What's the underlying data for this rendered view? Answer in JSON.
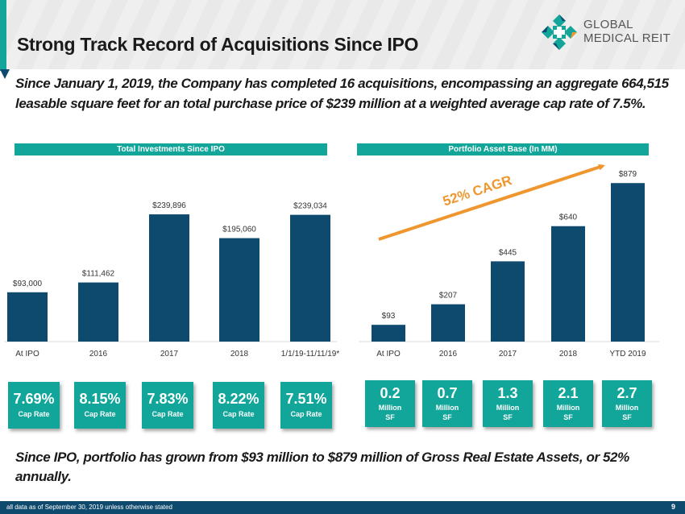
{
  "header": {
    "title": "Strong Track Record of Acquisitions Since IPO",
    "logo": {
      "icon": "global-medical-reit-logo-icon",
      "line1": "GLOBAL",
      "line2": "MEDICAL REIT"
    }
  },
  "intro_text": "Since January 1, 2019, the Company has completed 16 acquisitions, encompassing an aggregate 664,515 leasable square feet for an total purchase price of $239 million at a weighted average cap rate of 7.5%.",
  "colors": {
    "accent_teal": "#12a59a",
    "bar_navy": "#0e4a6e",
    "arrow_orange": "#f0962e"
  },
  "chart_data": [
    {
      "type": "bar",
      "title": "Total Investments Since IPO",
      "categories": [
        "At IPO",
        "2016",
        "2017",
        "2018",
        "1/1/19-11/11/19*"
      ],
      "values": [
        93000,
        111462,
        239896,
        195060,
        239034
      ],
      "value_labels": [
        "$93,000",
        "$111,462",
        "$239,896",
        "$195,060",
        "$239,034"
      ],
      "xlabel": "",
      "ylabel": "",
      "ylim": [
        0,
        240000
      ],
      "grid": false,
      "legend": "none"
    },
    {
      "type": "bar",
      "title": "Portfolio Asset Base (In MM)",
      "categories": [
        "At IPO",
        "2016",
        "2017",
        "2018",
        "YTD 2019"
      ],
      "values": [
        93,
        207,
        445,
        640,
        879
      ],
      "value_labels": [
        "$93",
        "$207",
        "$445",
        "$640",
        "$879"
      ],
      "xlabel": "",
      "ylabel": "",
      "ylim": [
        0,
        880
      ],
      "grid": false,
      "legend": "none",
      "annotations": [
        {
          "text": "52% CAGR",
          "type": "trend-arrow"
        }
      ]
    }
  ],
  "cap_rate_tiles": [
    {
      "value": "7.69%",
      "label": "Cap Rate"
    },
    {
      "value": "8.15%",
      "label": "Cap Rate"
    },
    {
      "value": "7.83%",
      "label": "Cap Rate"
    },
    {
      "value": "8.22%",
      "label": "Cap Rate"
    },
    {
      "value": "7.51%",
      "label": "Cap Rate"
    }
  ],
  "sf_tiles": [
    {
      "value": "0.2",
      "line1": "Million",
      "line2": "SF"
    },
    {
      "value": "0.7",
      "line1": "Million",
      "line2": "SF"
    },
    {
      "value": "1.3",
      "line1": "Million",
      "line2": "SF"
    },
    {
      "value": "2.1",
      "line1": "Million",
      "line2": "SF"
    },
    {
      "value": "2.7",
      "line1": "Million",
      "line2": "SF"
    }
  ],
  "outro_text": "Since IPO, portfolio has grown from $93 million to $879 million of Gross Real Estate Assets, or 52% annually.",
  "footer": {
    "note": "all data as of September 30, 2019 unless otherwise stated",
    "page_number": "9"
  }
}
